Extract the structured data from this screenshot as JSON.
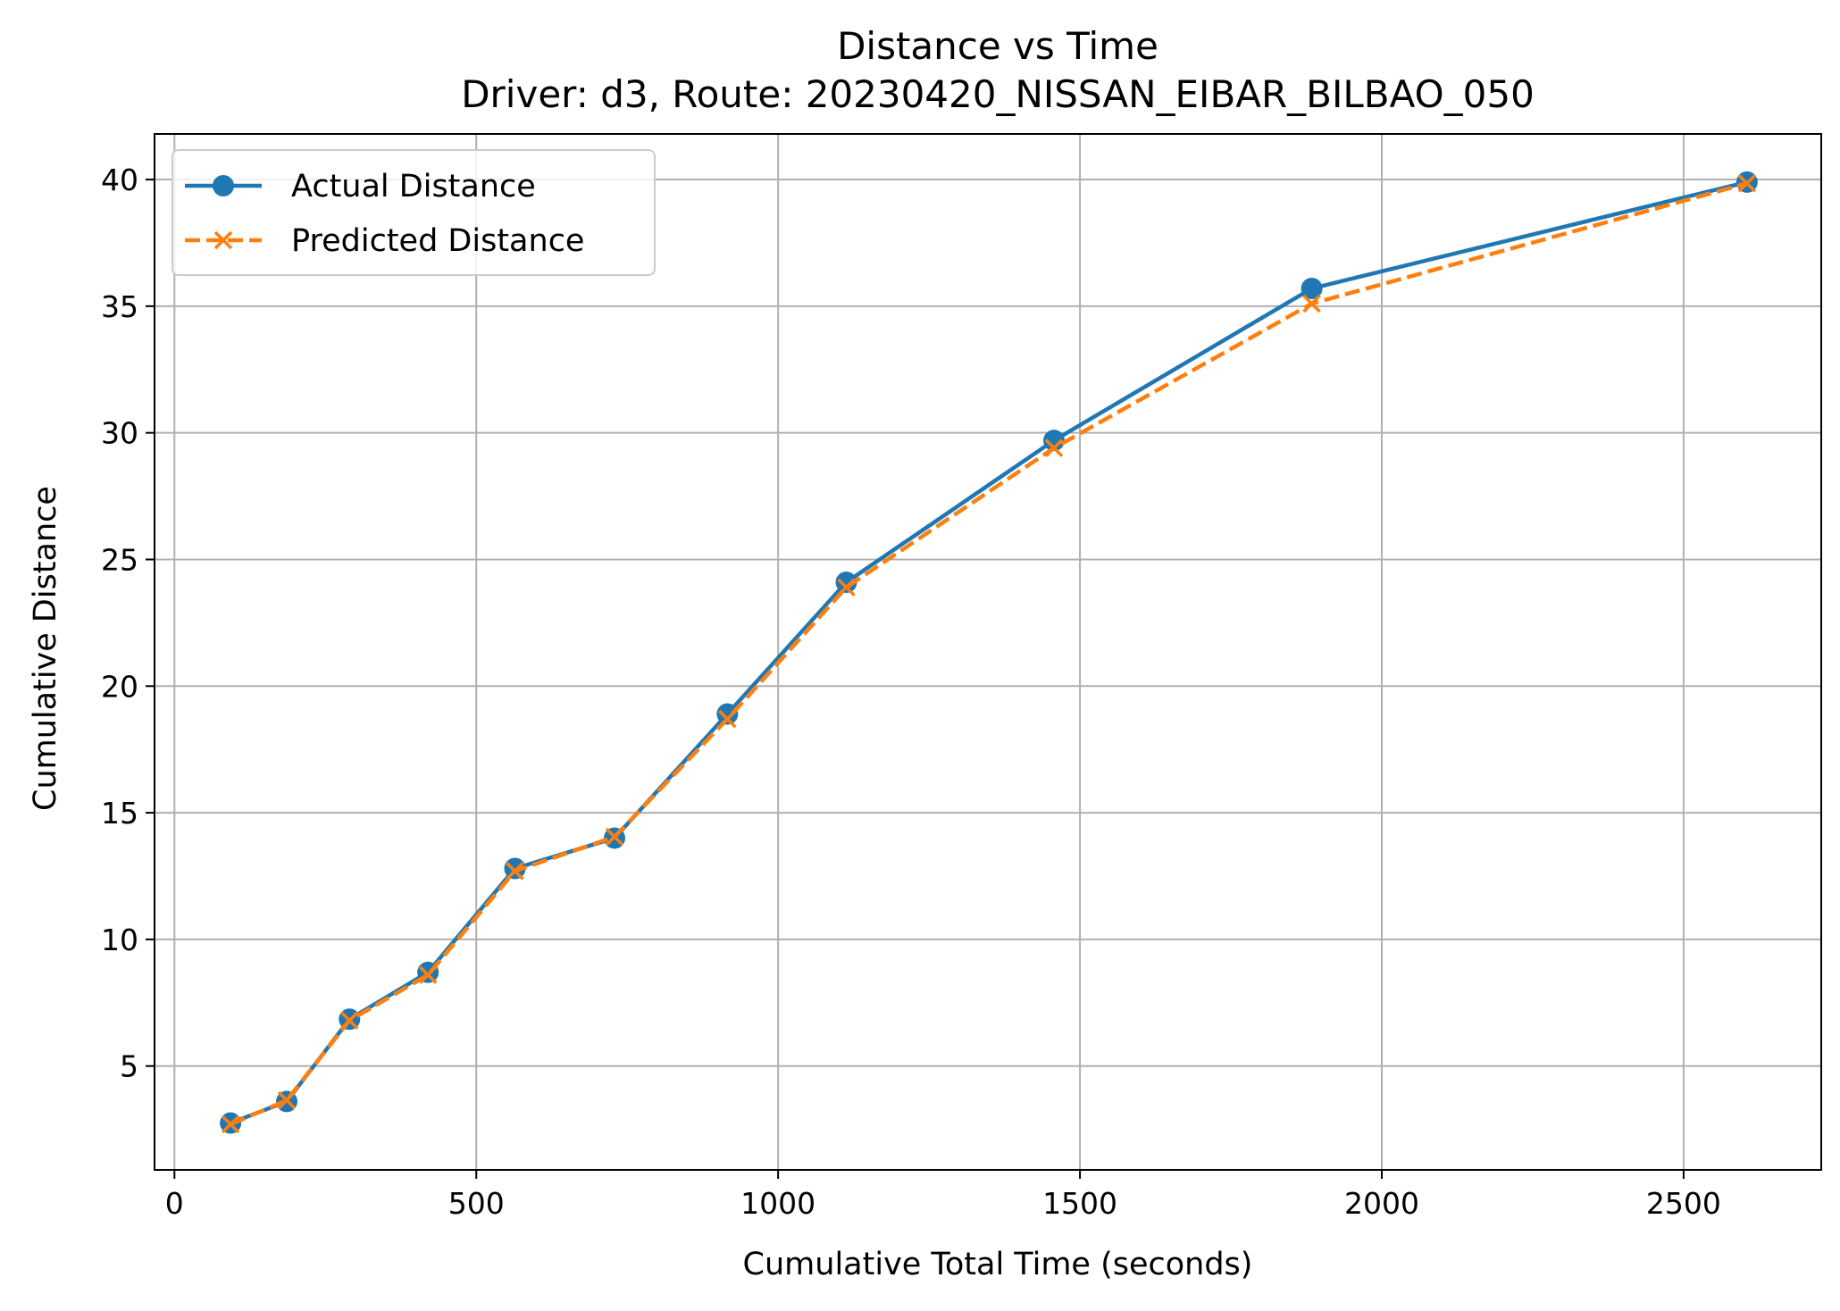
{
  "chart_data": {
    "type": "line",
    "title": "Distance vs Time",
    "subtitle": "Driver: d3, Route: 20230420_NISSAN_EIBAR_BILBAO_050",
    "xlabel": "Cumulative Total Time (seconds)",
    "ylabel": "Cumulative Distance",
    "xlim": [
      -33,
      2728
    ],
    "ylim": [
      0.9,
      41.8
    ],
    "xticks": [
      0,
      500,
      1000,
      1500,
      2000,
      2500
    ],
    "yticks": [
      5,
      10,
      15,
      20,
      25,
      30,
      35,
      40
    ],
    "grid": true,
    "legend": "top-left",
    "series": [
      {
        "name": "Actual Distance",
        "color": "#1f77b4",
        "style": "solid",
        "marker": "circle",
        "x": [
          93,
          186,
          290,
          420,
          564,
          729,
          916,
          1113,
          1457,
          1884,
          2605
        ],
        "y": [
          2.75,
          3.6,
          6.85,
          8.7,
          12.8,
          14.0,
          18.9,
          24.1,
          29.7,
          35.7,
          39.9
        ]
      },
      {
        "name": "Predicted Distance",
        "color": "#ff7f0e",
        "style": "dashed",
        "marker": "x",
        "x": [
          93,
          186,
          290,
          420,
          564,
          729,
          916,
          1113,
          1457,
          1884,
          2605
        ],
        "y": [
          2.7,
          3.65,
          6.8,
          8.6,
          12.7,
          14.05,
          18.7,
          23.9,
          29.4,
          35.1,
          39.85
        ]
      }
    ]
  }
}
